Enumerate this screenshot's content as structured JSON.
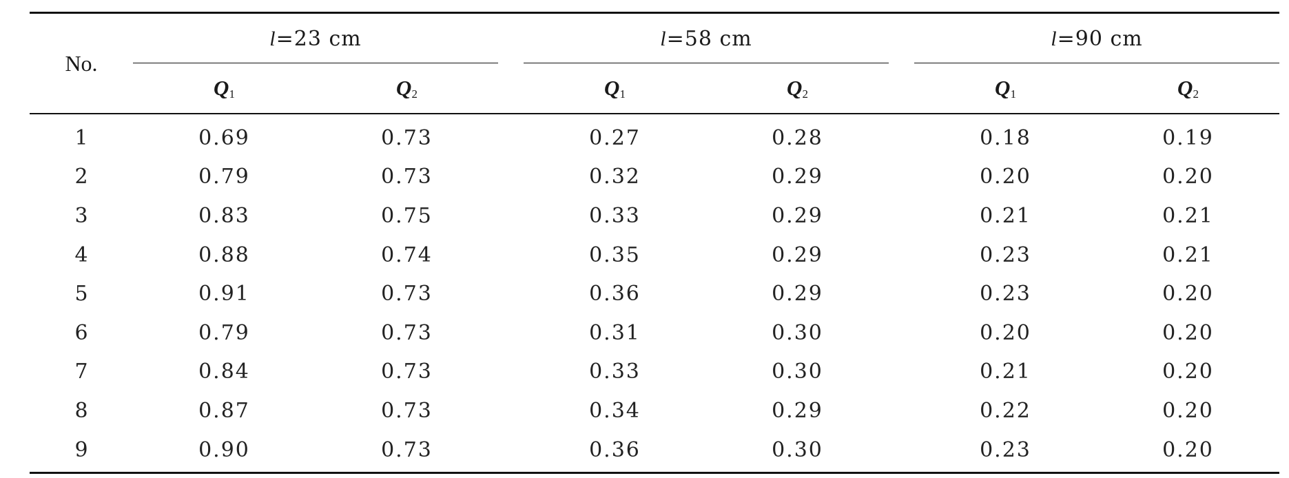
{
  "table": {
    "no_label": "No.",
    "groups": [
      {
        "var": "l",
        "eq": "=23 cm",
        "cols": [
          {
            "sym": "Q",
            "sub": "1"
          },
          {
            "sym": "Q",
            "sub": "2"
          }
        ]
      },
      {
        "var": "l",
        "eq": "=58 cm",
        "cols": [
          {
            "sym": "Q",
            "sub": "1"
          },
          {
            "sym": "Q",
            "sub": "2"
          }
        ]
      },
      {
        "var": "l",
        "eq": "=90 cm",
        "cols": [
          {
            "sym": "Q",
            "sub": "1"
          },
          {
            "sym": "Q",
            "sub": "2"
          }
        ]
      }
    ],
    "rows": [
      [
        "1",
        "0.69",
        "0.73",
        "0.27",
        "0.28",
        "0.18",
        "0.19"
      ],
      [
        "2",
        "0.79",
        "0.73",
        "0.32",
        "0.29",
        "0.20",
        "0.20"
      ],
      [
        "3",
        "0.83",
        "0.75",
        "0.33",
        "0.29",
        "0.21",
        "0.21"
      ],
      [
        "4",
        "0.88",
        "0.74",
        "0.35",
        "0.29",
        "0.23",
        "0.21"
      ],
      [
        "5",
        "0.91",
        "0.73",
        "0.36",
        "0.29",
        "0.23",
        "0.20"
      ],
      [
        "6",
        "0.79",
        "0.73",
        "0.31",
        "0.30",
        "0.20",
        "0.20"
      ],
      [
        "7",
        "0.84",
        "0.73",
        "0.33",
        "0.30",
        "0.21",
        "0.20"
      ],
      [
        "8",
        "0.87",
        "0.73",
        "0.34",
        "0.29",
        "0.22",
        "0.20"
      ],
      [
        "9",
        "0.90",
        "0.73",
        "0.36",
        "0.30",
        "0.23",
        "0.20"
      ]
    ]
  }
}
